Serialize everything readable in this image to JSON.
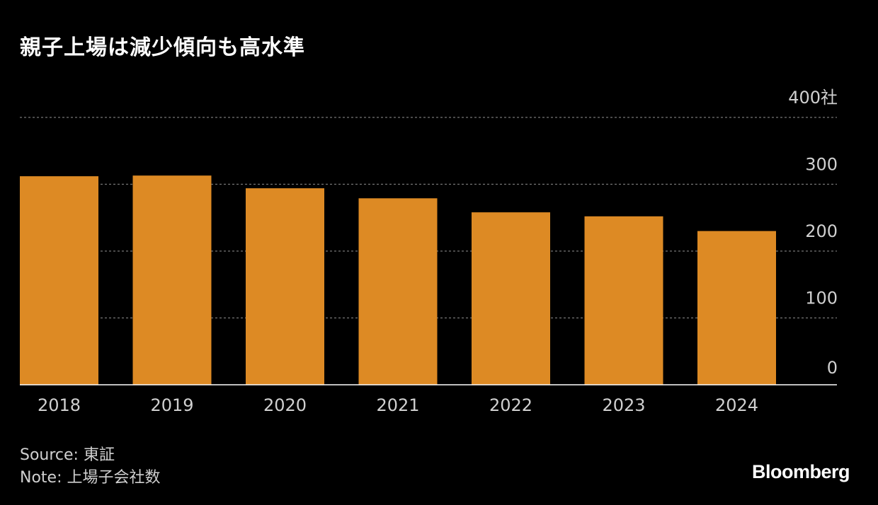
{
  "header": {
    "title": "親子上場は減少傾向も高水準"
  },
  "footer": {
    "source": "Source: 東証",
    "note": "Note: 上場子会社数"
  },
  "brand": {
    "name": "Bloomberg"
  },
  "colors": {
    "bar": "#DD8A24",
    "background": "#000000",
    "grid": "#777777",
    "axis": "#ffffff",
    "text": "#d0d0d0"
  },
  "chart_data": {
    "type": "bar",
    "title": "親子上場は減少傾向も高水準",
    "categories": [
      "2018",
      "2019",
      "2020",
      "2021",
      "2022",
      "2023",
      "2024"
    ],
    "values": [
      312,
      313,
      294,
      279,
      258,
      252,
      230
    ],
    "ylim": [
      0,
      400
    ],
    "yticks": [
      0,
      100,
      200,
      300,
      400
    ],
    "ytick_labels": [
      "0",
      "100",
      "200",
      "300",
      "400社"
    ],
    "y_axis_side": "right",
    "grid": true
  }
}
